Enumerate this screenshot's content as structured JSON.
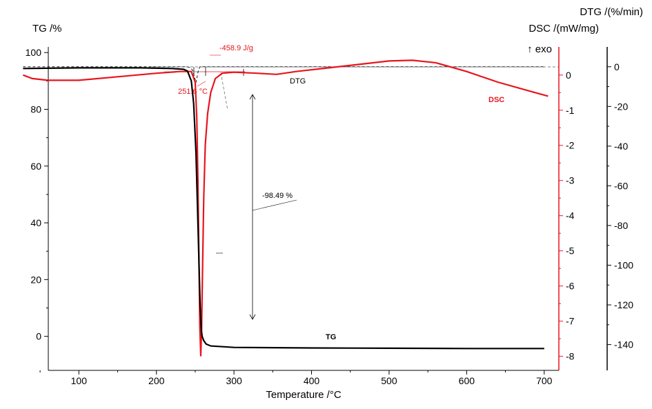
{
  "chart_data": {
    "type": "line",
    "xlabel": "Temperature /°C",
    "x_ticks": [
      "100",
      "200",
      "300",
      "400",
      "500",
      "600",
      "700"
    ],
    "xlim": [
      25,
      710
    ],
    "axes": {
      "tg": {
        "label": "TG /%",
        "ticks": [
          "100",
          "80",
          "60",
          "40",
          "20",
          "0"
        ],
        "ylim": [
          -12,
          102
        ],
        "color": "#000000"
      },
      "dsc": {
        "label": "DSC /(mW/mg)",
        "ticks": [
          "0",
          "-1",
          "-2",
          "-3",
          "-4",
          "-5",
          "-6",
          "-7",
          "-8"
        ],
        "ylim": [
          -8.4,
          0.8
        ],
        "color": "#e8141c",
        "exo_label": "↑ exo"
      },
      "dtg": {
        "label": "DTG /(%/min)",
        "ticks": [
          "0",
          "-20",
          "-40",
          "-60",
          "-80",
          "-100",
          "-120",
          "-140"
        ],
        "ylim": [
          -153,
          10
        ],
        "color": "#000000"
      }
    },
    "series": [
      {
        "name": "TG",
        "axis": "tg",
        "color": "#000000",
        "points": [
          [
            28,
            94.4
          ],
          [
            100,
            94.6
          ],
          [
            180,
            94.6
          ],
          [
            220,
            94.4
          ],
          [
            235,
            94.1
          ],
          [
            240,
            93.5
          ],
          [
            245,
            90
          ],
          [
            248,
            82
          ],
          [
            251,
            65
          ],
          [
            253,
            45
          ],
          [
            255,
            25
          ],
          [
            256.5,
            10
          ],
          [
            258,
            2
          ],
          [
            259,
            0
          ],
          [
            261,
            -1.5
          ],
          [
            264,
            -2.7
          ],
          [
            270,
            -3.4
          ],
          [
            300,
            -3.9
          ],
          [
            400,
            -4.1
          ],
          [
            500,
            -4.2
          ],
          [
            600,
            -4.3
          ],
          [
            700,
            -4.3
          ]
        ]
      },
      {
        "name": "DSC",
        "axis": "dsc",
        "color": "#e8141c",
        "points": [
          [
            28,
            0
          ],
          [
            40,
            -0.1
          ],
          [
            60,
            -0.15
          ],
          [
            100,
            -0.15
          ],
          [
            150,
            -0.05
          ],
          [
            200,
            0.05
          ],
          [
            230,
            0.1
          ],
          [
            245,
            0.1
          ],
          [
            250,
            -0.2
          ],
          [
            252,
            -1.2
          ],
          [
            253.5,
            -3
          ],
          [
            255,
            -5.5
          ],
          [
            256,
            -7.2
          ],
          [
            257.2,
            -8.0
          ],
          [
            258.3,
            -7.2
          ],
          [
            259.5,
            -5.5
          ],
          [
            261,
            -3.5
          ],
          [
            263,
            -2
          ],
          [
            266,
            -1.1
          ],
          [
            270,
            -0.5
          ],
          [
            276,
            -0.1
          ],
          [
            285,
            0.05
          ],
          [
            300,
            0.08
          ],
          [
            330,
            0.05
          ],
          [
            355,
            0.02
          ],
          [
            380,
            0.1
          ],
          [
            420,
            0.2
          ],
          [
            460,
            0.3
          ],
          [
            500,
            0.4
          ],
          [
            530,
            0.42
          ],
          [
            560,
            0.35
          ],
          [
            600,
            0.1
          ],
          [
            640,
            -0.2
          ],
          [
            680,
            -0.45
          ],
          [
            705,
            -0.6
          ]
        ]
      },
      {
        "name": "DTG",
        "axis": "dtg",
        "color": "#000000",
        "dashed": true,
        "points": [
          [
            28,
            0
          ],
          [
            200,
            0
          ],
          [
            240,
            0
          ],
          [
            244,
            -0.5
          ],
          [
            247,
            -2
          ],
          [
            249,
            -5
          ],
          [
            251,
            -8
          ],
          [
            252.5,
            -5
          ],
          [
            254,
            -2
          ],
          [
            256,
            0
          ],
          [
            300,
            0
          ],
          [
            400,
            0
          ],
          [
            500,
            0
          ],
          [
            600,
            0
          ],
          [
            700,
            0
          ]
        ]
      }
    ],
    "annotations": {
      "dsc_enthalpy": "-458.9 J/g",
      "dsc_onset": "251.6 °C",
      "mass_loss": "-98.49 %",
      "dtg_curve_label": "DTG",
      "dsc_curve_label": "DSC",
      "tg_curve_label": "TG"
    },
    "grid": false,
    "legend": "none"
  }
}
